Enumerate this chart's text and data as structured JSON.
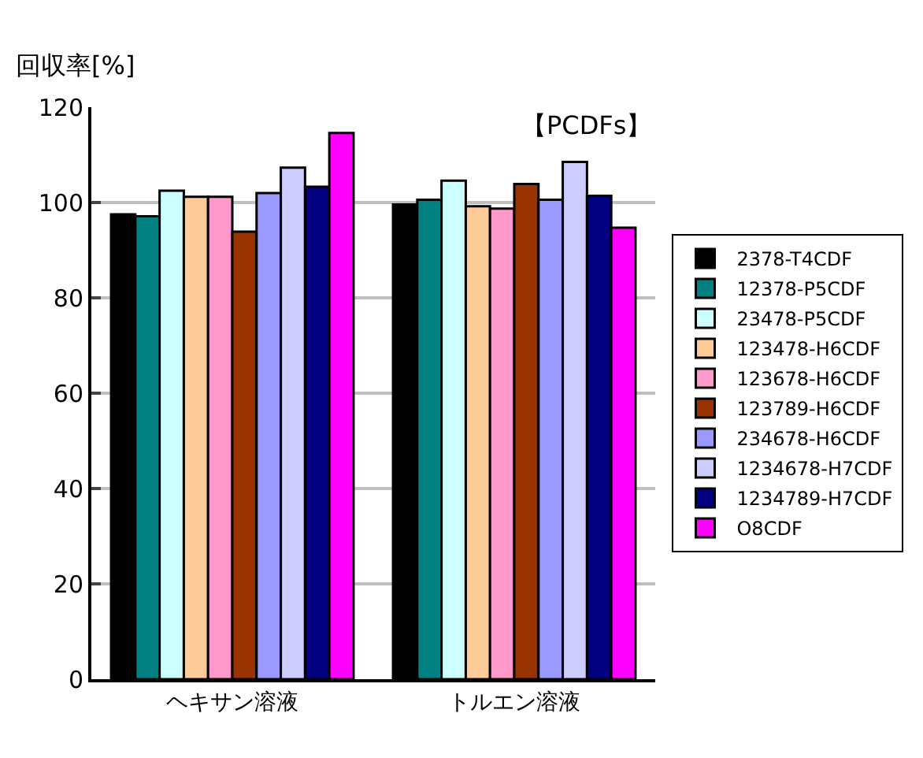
{
  "chart_data": {
    "type": "bar",
    "title": "【PCDFs】",
    "ylabel": "回収率[%]",
    "categories": [
      "ヘキサン溶液",
      "トルエン溶液"
    ],
    "series": [
      {
        "name": "2378-T4CDF",
        "color": "#000000",
        "values": [
          97.5,
          99.6
        ]
      },
      {
        "name": "12378-P5CDF",
        "color": "#008080",
        "values": [
          97.1,
          100.6
        ]
      },
      {
        "name": "23478-P5CDF",
        "color": "#ccffff",
        "values": [
          102.5,
          104.6
        ]
      },
      {
        "name": "123478-H6CDF",
        "color": "#ffcc99",
        "values": [
          101.2,
          99.2
        ]
      },
      {
        "name": "123678-H6CDF",
        "color": "#ff99cc",
        "values": [
          101.2,
          98.7
        ]
      },
      {
        "name": "123789-H6CDF",
        "color": "#993300",
        "values": [
          93.9,
          103.9
        ]
      },
      {
        "name": "234678-H6CDF",
        "color": "#9999ff",
        "values": [
          102.0,
          100.6
        ]
      },
      {
        "name": "1234678-H7CDF",
        "color": "#ccccff",
        "values": [
          107.3,
          108.5
        ]
      },
      {
        "name": "1234789-H7CDF",
        "color": "#000080",
        "values": [
          103.3,
          101.4
        ]
      },
      {
        "name": "O8CDF",
        "color": "#ff00ff",
        "values": [
          114.6,
          94.7
        ]
      }
    ],
    "ylim": [
      0,
      120
    ],
    "yticks": [
      0,
      20,
      40,
      60,
      80,
      100,
      120
    ],
    "grid": "y",
    "legend": "right"
  }
}
